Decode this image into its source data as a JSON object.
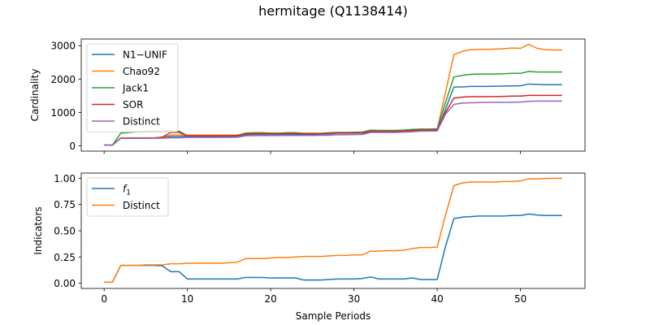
{
  "figure_title": "hermitage (Q1138414)",
  "chart_data": [
    {
      "type": "line",
      "ylabel": "Cardinality",
      "xlabel": "",
      "xlim": [
        -2.75,
        57.75
      ],
      "ylim": [
        -160,
        3200
      ],
      "yticks": [
        0,
        1000,
        2000,
        3000
      ],
      "xticks": [
        0,
        10,
        20,
        30,
        40,
        50
      ],
      "show_xticklabels": false,
      "legend_position": "upper left",
      "x": [
        0,
        1,
        2,
        3,
        4,
        5,
        6,
        7,
        8,
        9,
        10,
        11,
        12,
        13,
        14,
        15,
        16,
        17,
        18,
        19,
        20,
        21,
        22,
        23,
        24,
        25,
        26,
        27,
        28,
        29,
        30,
        31,
        32,
        33,
        34,
        35,
        36,
        37,
        38,
        39,
        40,
        41,
        42,
        43,
        44,
        45,
        46,
        47,
        48,
        49,
        50,
        51,
        52,
        53,
        54,
        55
      ],
      "series": [
        {
          "name": "N1−UNIF",
          "color": "#1f77b4",
          "values": [
            20,
            20,
            230,
            230,
            235,
            235,
            235,
            240,
            275,
            275,
            285,
            285,
            285,
            285,
            285,
            285,
            290,
            330,
            335,
            335,
            340,
            340,
            345,
            345,
            345,
            345,
            345,
            355,
            375,
            375,
            380,
            380,
            410,
            410,
            410,
            410,
            420,
            440,
            450,
            450,
            455,
            1100,
            1760,
            1765,
            1780,
            1780,
            1780,
            1785,
            1790,
            1795,
            1800,
            1850,
            1840,
            1830,
            1830,
            1830
          ]
        },
        {
          "name": "Chao92",
          "color": "#ff7f0e",
          "values": [
            20,
            20,
            240,
            240,
            240,
            240,
            240,
            260,
            320,
            320,
            320,
            320,
            320,
            320,
            320,
            320,
            325,
            360,
            365,
            365,
            365,
            370,
            375,
            375,
            375,
            375,
            375,
            380,
            390,
            390,
            395,
            400,
            440,
            440,
            440,
            440,
            450,
            470,
            480,
            480,
            490,
            1600,
            2730,
            2830,
            2880,
            2890,
            2890,
            2900,
            2910,
            2930,
            2920,
            3040,
            2920,
            2880,
            2870,
            2870
          ]
        },
        {
          "name": "Jack1",
          "color": "#2ca02c",
          "values": [
            20,
            20,
            380,
            400,
            420,
            430,
            440,
            440,
            440,
            440,
            300,
            300,
            300,
            300,
            300,
            300,
            310,
            380,
            390,
            390,
            380,
            380,
            390,
            390,
            370,
            370,
            370,
            390,
            400,
            400,
            405,
            410,
            470,
            460,
            460,
            460,
            470,
            490,
            500,
            500,
            510,
            1300,
            2060,
            2110,
            2140,
            2150,
            2150,
            2150,
            2160,
            2170,
            2170,
            2230,
            2210,
            2210,
            2210,
            2210
          ]
        },
        {
          "name": "SOR",
          "color": "#d62728",
          "values": [
            20,
            20,
            230,
            230,
            230,
            230,
            230,
            260,
            400,
            400,
            300,
            300,
            300,
            300,
            300,
            300,
            310,
            360,
            365,
            365,
            365,
            365,
            370,
            370,
            365,
            365,
            365,
            370,
            385,
            385,
            390,
            395,
            430,
            430,
            430,
            430,
            440,
            460,
            470,
            470,
            480,
            1000,
            1430,
            1460,
            1470,
            1470,
            1470,
            1475,
            1480,
            1490,
            1490,
            1510,
            1510,
            1510,
            1510,
            1510
          ]
        },
        {
          "name": "Distinct",
          "color": "#9467bd",
          "values": [
            20,
            20,
            225,
            225,
            225,
            225,
            225,
            230,
            240,
            240,
            250,
            250,
            250,
            250,
            250,
            255,
            255,
            300,
            305,
            305,
            305,
            305,
            310,
            310,
            310,
            310,
            315,
            315,
            330,
            330,
            335,
            340,
            400,
            400,
            400,
            400,
            410,
            420,
            440,
            440,
            445,
            950,
            1240,
            1280,
            1290,
            1295,
            1300,
            1300,
            1300,
            1305,
            1310,
            1330,
            1340,
            1340,
            1340,
            1340
          ]
        }
      ]
    },
    {
      "type": "line",
      "ylabel": "Indicators",
      "xlabel": "Sample Periods",
      "xlim": [
        -2.75,
        57.75
      ],
      "ylim": [
        -0.05,
        1.05
      ],
      "yticks": [
        0.0,
        0.25,
        0.5,
        0.75,
        1.0
      ],
      "ytick_labels": [
        "0.00",
        "0.25",
        "0.50",
        "0.75",
        "1.00"
      ],
      "xticks": [
        0,
        10,
        20,
        30,
        40,
        50
      ],
      "show_xticklabels": true,
      "legend_position": "upper left",
      "x": [
        0,
        1,
        2,
        3,
        4,
        5,
        6,
        7,
        8,
        9,
        10,
        11,
        12,
        13,
        14,
        15,
        16,
        17,
        18,
        19,
        20,
        21,
        22,
        23,
        24,
        25,
        26,
        27,
        28,
        29,
        30,
        31,
        32,
        33,
        34,
        35,
        36,
        37,
        38,
        39,
        40,
        41,
        42,
        43,
        44,
        45,
        46,
        47,
        48,
        49,
        50,
        51,
        52,
        53,
        54,
        55
      ],
      "series": [
        {
          "name": "f1",
          "name_main": "f",
          "name_sub": "1",
          "color": "#1f77b4",
          "values": [
            0.01,
            0.01,
            0.17,
            0.17,
            0.17,
            0.17,
            0.17,
            0.165,
            0.11,
            0.11,
            0.04,
            0.04,
            0.04,
            0.04,
            0.04,
            0.04,
            0.04,
            0.055,
            0.055,
            0.055,
            0.05,
            0.05,
            0.05,
            0.05,
            0.03,
            0.03,
            0.03,
            0.035,
            0.04,
            0.04,
            0.04,
            0.045,
            0.06,
            0.04,
            0.04,
            0.04,
            0.04,
            0.05,
            0.035,
            0.035,
            0.035,
            0.35,
            0.615,
            0.63,
            0.635,
            0.64,
            0.64,
            0.64,
            0.64,
            0.645,
            0.645,
            0.66,
            0.65,
            0.645,
            0.645,
            0.645
          ]
        },
        {
          "name": "Distinct",
          "color": "#ff7f0e",
          "values": [
            0.01,
            0.01,
            0.17,
            0.17,
            0.17,
            0.175,
            0.175,
            0.175,
            0.185,
            0.185,
            0.19,
            0.19,
            0.19,
            0.19,
            0.19,
            0.195,
            0.2,
            0.235,
            0.235,
            0.235,
            0.24,
            0.245,
            0.245,
            0.25,
            0.255,
            0.255,
            0.255,
            0.26,
            0.265,
            0.265,
            0.27,
            0.27,
            0.305,
            0.305,
            0.31,
            0.31,
            0.315,
            0.33,
            0.34,
            0.34,
            0.345,
            0.65,
            0.93,
            0.955,
            0.965,
            0.965,
            0.965,
            0.965,
            0.97,
            0.97,
            0.975,
            0.995,
            0.995,
            0.998,
            1.0,
            1.0
          ]
        }
      ]
    }
  ]
}
